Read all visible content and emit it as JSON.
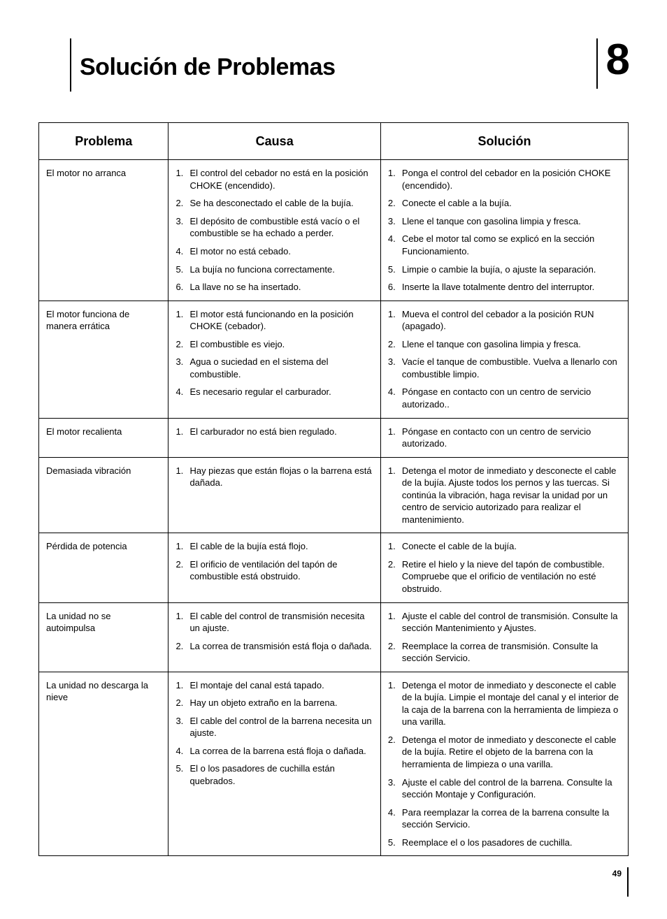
{
  "page": {
    "title": "Solución de Problemas",
    "chapter": "8",
    "page_number": "49"
  },
  "table": {
    "headers": {
      "problem": "Problema",
      "cause": "Causa",
      "solution": "Solución"
    },
    "rows": [
      {
        "problem": "El motor no arranca",
        "causes": [
          "El control del cebador no está en la posición CHOKE (encendido).",
          "Se ha desconectado el cable de la bujía.",
          "El depósito de combustible está vacío o el combustible se ha echado a perder.",
          "El motor no está cebado.",
          "La bujía no funciona correctamente.",
          "La llave no se ha insertado."
        ],
        "solutions": [
          "Ponga el control del cebador en la posición CHOKE (encendido).",
          "Conecte el cable a la bujía.",
          "Llene el tanque con gasolina limpia y fresca.",
          "Cebe el motor tal como se explicó en la sección Funcionamiento.",
          "Limpie o cambie la bujía, o ajuste la separación.",
          "Inserte la llave totalmente dentro del interruptor."
        ]
      },
      {
        "problem": "El motor funciona de manera errática",
        "causes": [
          "El motor está funcionando en la posición CHOKE (cebador).",
          "El combustible es viejo.",
          "Agua o suciedad en el sistema del combustible.",
          "Es necesario regular el carburador."
        ],
        "solutions": [
          "Mueva el control del cebador a la posición RUN (apagado).",
          "Llene el tanque con gasolina limpia y fresca.",
          "Vacíe el tanque de combustible. Vuelva a llenarlo con combustible limpio.",
          "Póngase en contacto con un centro de servicio autorizado.."
        ]
      },
      {
        "problem": "El motor recalienta",
        "causes": [
          "El carburador no está bien regulado."
        ],
        "solutions": [
          "Póngase en contacto con un centro de servicio autorizado."
        ]
      },
      {
        "problem": "Demasiada vibración",
        "causes": [
          "Hay piezas que están flojas o la barrena está dañada."
        ],
        "solutions": [
          "Detenga el motor de inmediato y desconecte el cable de la bujía. Ajuste todos los pernos y las tuercas. Si continúa la vibración, haga revisar la unidad por un centro de servicio autorizado para realizar el mantenimiento."
        ]
      },
      {
        "problem": "Pérdida de potencia",
        "causes": [
          "El cable de la bujía está flojo.",
          "El orificio de ventilación del tapón de combustible está obstruido."
        ],
        "solutions": [
          "Conecte el cable de la bujía.",
          "Retire el hielo y la nieve del tapón de combustible. Compruebe que el orificio de ventilación no esté obstruido."
        ]
      },
      {
        "problem": "La unidad no se autoimpulsa",
        "causes": [
          "El cable del control de transmisión necesita un ajuste.",
          "La correa de transmisión está floja o dañada."
        ],
        "solutions": [
          "Ajuste el cable del control de transmisión. Consulte la sección Mantenimiento y Ajustes.",
          "Reemplace la correa de transmisión. Consulte la sección Servicio."
        ]
      },
      {
        "problem": "La unidad no descarga la nieve",
        "causes": [
          "El montaje del canal está tapado.",
          "Hay un objeto extraño en la barrena.",
          "El cable del control de la barrena necesita un ajuste.",
          "La correa de la barrena está floja o dañada.",
          "El o los pasadores de cuchilla están quebrados."
        ],
        "solutions": [
          "Detenga el motor de inmediato y desconecte el cable de la bujía. Limpie el montaje del canal y el interior de la caja de la barrena con la herramienta de limpieza o una varilla.",
          "Detenga el motor de inmediato y desconecte el cable de la bujía. Retire el objeto de la barrena con la herramienta de limpieza o una varilla.",
          "Ajuste el cable del control de la barrena. Consulte la sección Montaje y Configuración.",
          "Para reemplazar la correa de la barrena consulte la sección Servicio.",
          "Reemplace el o los pasadores de cuchilla."
        ]
      }
    ]
  }
}
